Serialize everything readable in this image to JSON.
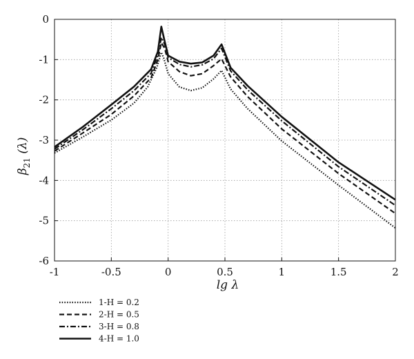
{
  "chart_data": {
    "type": "line",
    "xlabel": "lg λ",
    "ylabel": "β21 (λ)",
    "ylabel_main": "β",
    "ylabel_sub": "21",
    "ylabel_arg": " (λ)",
    "xlim": [
      -1,
      2
    ],
    "ylim": [
      -6,
      0
    ],
    "xticks": [
      -1,
      -0.5,
      0,
      0.5,
      1,
      1.5,
      2
    ],
    "xtick_labels": [
      "-1",
      "-0.5",
      "0",
      "0.5",
      "1",
      "1.5",
      "2"
    ],
    "yticks": [
      0,
      -1,
      -2,
      -3,
      -4,
      -5,
      -6
    ],
    "ytick_labels": [
      "0",
      "-1",
      "-2",
      "-3",
      "-4",
      "-5",
      "-6"
    ],
    "grid": true,
    "legend_position": "below-left",
    "series": [
      {
        "name": "1-H = 0.2",
        "dash": "dotted",
        "points": [
          [
            -1,
            -3.32
          ],
          [
            -0.75,
            -2.92
          ],
          [
            -0.5,
            -2.5
          ],
          [
            -0.3,
            -2.08
          ],
          [
            -0.18,
            -1.68
          ],
          [
            -0.1,
            -1.2
          ],
          [
            -0.06,
            -0.82
          ],
          [
            -0.04,
            -0.95
          ],
          [
            0.0,
            -1.35
          ],
          [
            0.1,
            -1.68
          ],
          [
            0.2,
            -1.77
          ],
          [
            0.3,
            -1.7
          ],
          [
            0.4,
            -1.48
          ],
          [
            0.47,
            -1.27
          ],
          [
            0.55,
            -1.73
          ],
          [
            0.7,
            -2.22
          ],
          [
            1.0,
            -3.02
          ],
          [
            1.5,
            -4.12
          ],
          [
            2.0,
            -5.18
          ]
        ]
      },
      {
        "name": "2-H = 0.5",
        "dash": "dashed",
        "points": [
          [
            -1,
            -3.27
          ],
          [
            -0.75,
            -2.82
          ],
          [
            -0.5,
            -2.36
          ],
          [
            -0.3,
            -1.9
          ],
          [
            -0.15,
            -1.45
          ],
          [
            -0.09,
            -1.0
          ],
          [
            -0.06,
            -0.58
          ],
          [
            -0.03,
            -0.72
          ],
          [
            0.0,
            -1.05
          ],
          [
            0.1,
            -1.3
          ],
          [
            0.2,
            -1.4
          ],
          [
            0.3,
            -1.35
          ],
          [
            0.4,
            -1.15
          ],
          [
            0.47,
            -0.98
          ],
          [
            0.55,
            -1.43
          ],
          [
            0.7,
            -1.92
          ],
          [
            1.0,
            -2.72
          ],
          [
            1.5,
            -3.83
          ],
          [
            2.0,
            -4.82
          ]
        ]
      },
      {
        "name": "3-H = 0.8",
        "dash": "dashdot",
        "points": [
          [
            -1,
            -3.22
          ],
          [
            -0.75,
            -2.74
          ],
          [
            -0.5,
            -2.22
          ],
          [
            -0.3,
            -1.77
          ],
          [
            -0.15,
            -1.34
          ],
          [
            -0.09,
            -0.88
          ],
          [
            -0.06,
            -0.45
          ],
          [
            -0.03,
            -0.62
          ],
          [
            0.0,
            -0.95
          ],
          [
            0.1,
            -1.12
          ],
          [
            0.2,
            -1.18
          ],
          [
            0.3,
            -1.13
          ],
          [
            0.4,
            -0.98
          ],
          [
            0.47,
            -0.72
          ],
          [
            0.55,
            -1.28
          ],
          [
            0.7,
            -1.75
          ],
          [
            1.0,
            -2.52
          ],
          [
            1.5,
            -3.66
          ],
          [
            2.0,
            -4.62
          ]
        ]
      },
      {
        "name": "4-H = 1.0",
        "dash": "solid",
        "points": [
          [
            -1,
            -3.17
          ],
          [
            -0.75,
            -2.67
          ],
          [
            -0.5,
            -2.12
          ],
          [
            -0.3,
            -1.67
          ],
          [
            -0.15,
            -1.24
          ],
          [
            -0.09,
            -0.8
          ],
          [
            -0.06,
            -0.18
          ],
          [
            -0.03,
            -0.55
          ],
          [
            0.0,
            -0.9
          ],
          [
            0.1,
            -1.05
          ],
          [
            0.2,
            -1.1
          ],
          [
            0.3,
            -1.07
          ],
          [
            0.4,
            -0.9
          ],
          [
            0.47,
            -0.62
          ],
          [
            0.55,
            -1.2
          ],
          [
            0.7,
            -1.65
          ],
          [
            1.0,
            -2.42
          ],
          [
            1.5,
            -3.55
          ],
          [
            2.0,
            -4.48
          ]
        ]
      }
    ]
  }
}
